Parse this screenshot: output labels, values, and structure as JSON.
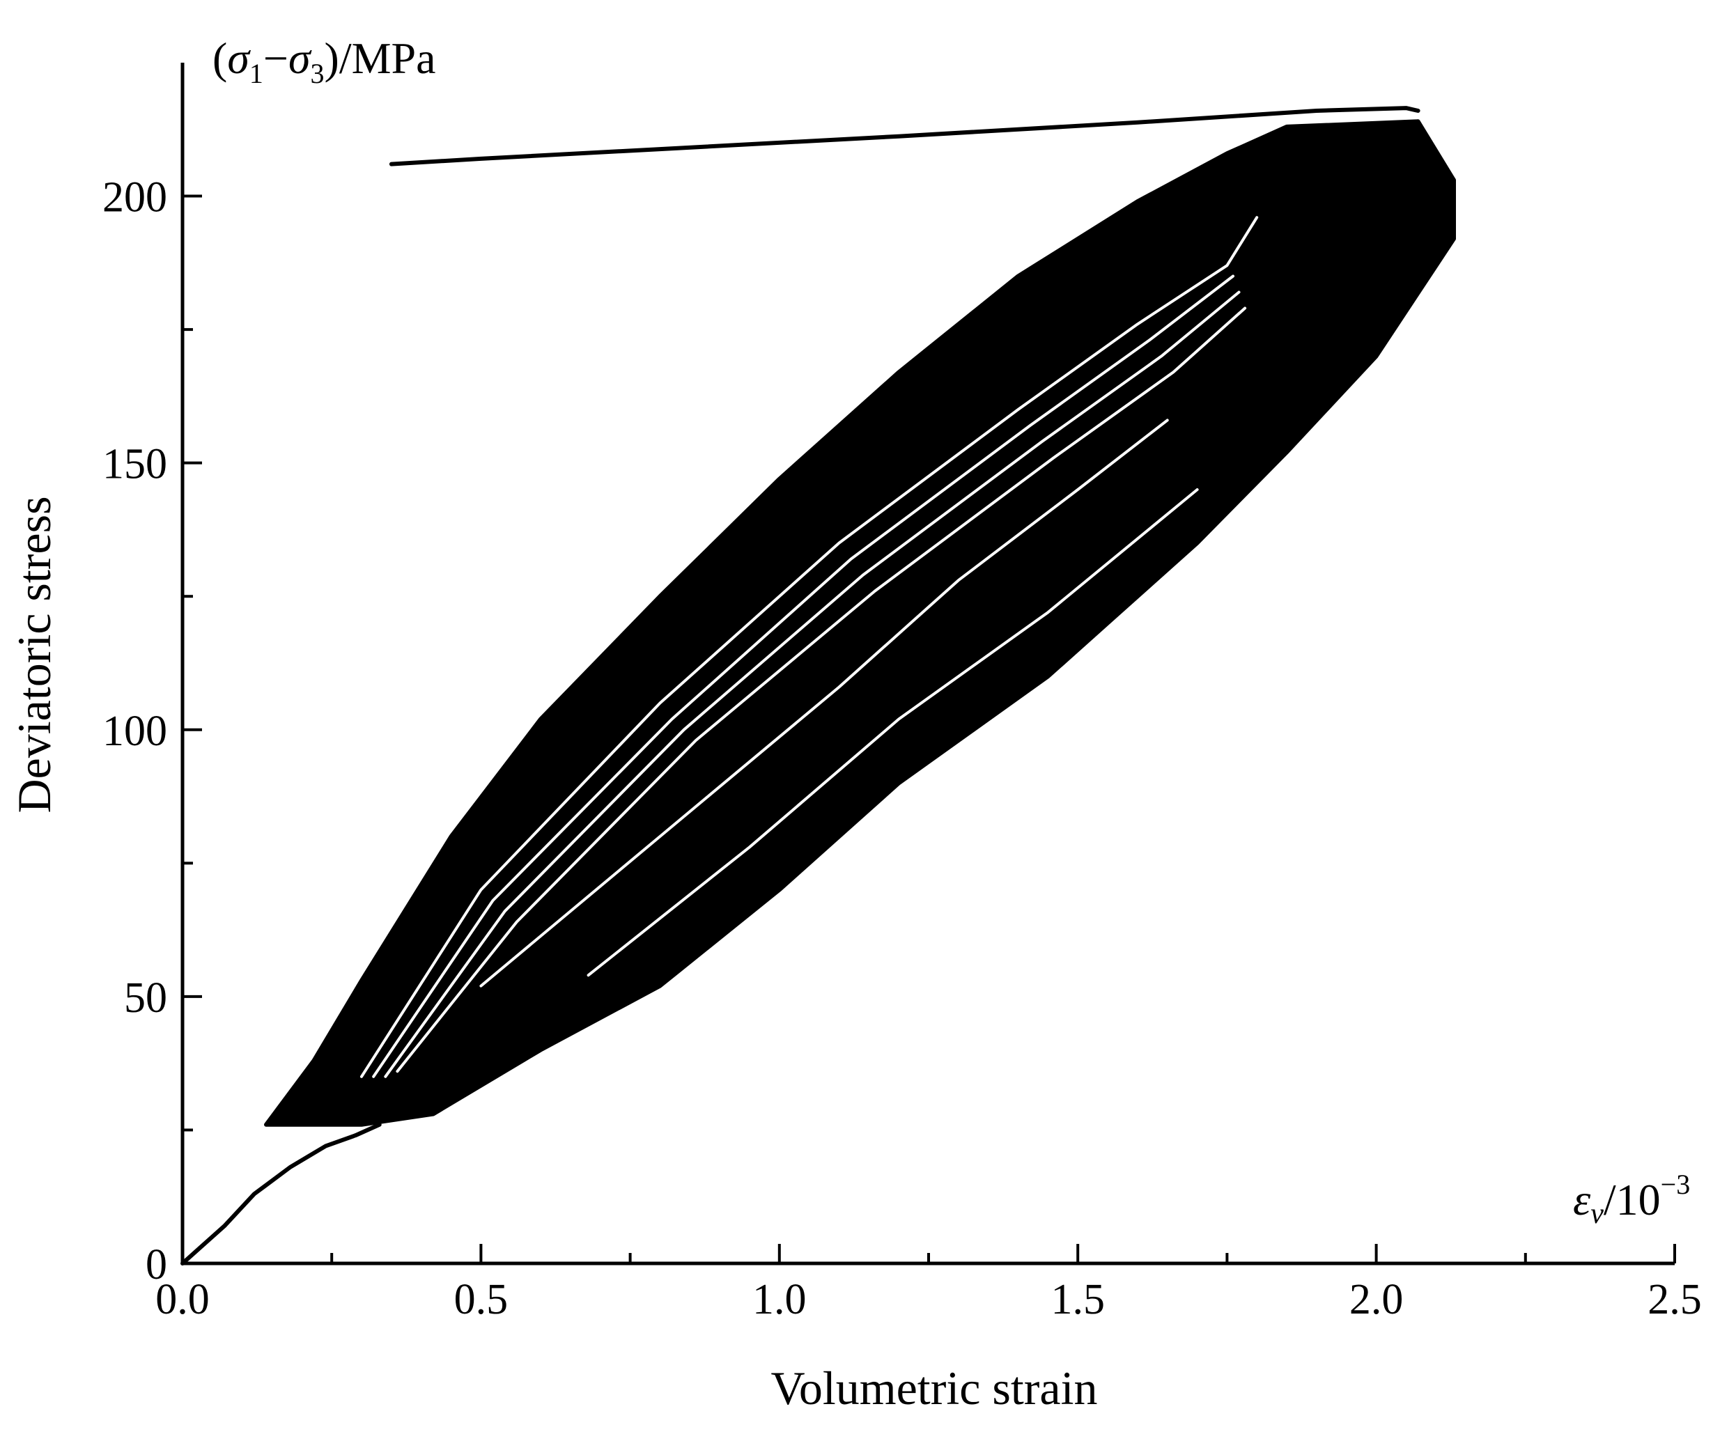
{
  "chart_data": {
    "type": "line",
    "title": "",
    "xlabel": "Volumetric strain",
    "ylabel": "Deviatoric stress",
    "x_unit_symbol": "ε",
    "x_unit_sub": "v",
    "x_unit_rest": "/10",
    "x_unit_exp": "−3",
    "y_unit_open": "(",
    "y_unit_sigma1": "σ",
    "y_unit_sub1": "1",
    "y_unit_minus": "−",
    "y_unit_sigma3": "σ",
    "y_unit_sub3": "3",
    "y_unit_close": ")/MPa",
    "xlim": [
      0,
      2.5
    ],
    "ylim": [
      0,
      225
    ],
    "x_ticks": [
      0.0,
      0.5,
      1.0,
      1.5,
      2.0,
      2.5
    ],
    "x_tick_labels": [
      "0.0",
      "0.5",
      "1.0",
      "1.5",
      "2.0",
      "2.5"
    ],
    "x_minor_ticks": [
      0.25,
      0.75,
      1.25,
      1.75,
      2.25
    ],
    "y_ticks": [
      0,
      50,
      100,
      150,
      200
    ],
    "y_tick_labels": [
      "0",
      "50",
      "100",
      "150",
      "200"
    ],
    "y_minor_ticks": [
      25,
      75,
      125,
      175
    ],
    "grid": false,
    "legend": "none",
    "line_color": "#000000",
    "initial_loading": {
      "x": [
        0.0,
        0.03,
        0.07,
        0.12,
        0.18,
        0.24,
        0.29,
        0.33
      ],
      "y": [
        0,
        3,
        7,
        13,
        18,
        22,
        24,
        26
      ]
    },
    "hysteresis_band": {
      "outer_upper_x": [
        0.14,
        0.22,
        0.3,
        0.45,
        0.6,
        0.8,
        1.0,
        1.2,
        1.4,
        1.6,
        1.75,
        1.85
      ],
      "outer_upper_y": [
        26,
        38,
        53,
        80,
        102,
        125,
        147,
        167,
        185,
        199,
        208,
        213
      ],
      "outer_lower_x": [
        0.14,
        0.3,
        0.42,
        0.6,
        0.8,
        1.0,
        1.2,
        1.45,
        1.7,
        1.85,
        2.0,
        2.13
      ],
      "outer_lower_y": [
        26,
        26,
        28,
        40,
        52,
        70,
        90,
        110,
        135,
        152,
        170,
        192
      ]
    },
    "inner_loops": [
      {
        "x": [
          0.3,
          0.5,
          0.8,
          1.1,
          1.4,
          1.6,
          1.75,
          1.8
        ],
        "y": [
          35,
          70,
          105,
          135,
          160,
          176,
          187,
          196
        ]
      },
      {
        "x": [
          0.32,
          0.52,
          0.82,
          1.12,
          1.42,
          1.62,
          1.76
        ],
        "y": [
          35,
          68,
          102,
          132,
          157,
          173,
          185
        ]
      },
      {
        "x": [
          0.34,
          0.54,
          0.84,
          1.14,
          1.44,
          1.64,
          1.77
        ],
        "y": [
          35,
          66,
          100,
          129,
          154,
          170,
          182
        ]
      },
      {
        "x": [
          0.36,
          0.56,
          0.86,
          1.16,
          1.46,
          1.66,
          1.78
        ],
        "y": [
          36,
          64,
          98,
          126,
          151,
          167,
          179
        ]
      },
      {
        "x": [
          0.5,
          0.8,
          1.1,
          1.3,
          1.5,
          1.65
        ],
        "y": [
          52,
          80,
          108,
          128,
          145,
          158
        ]
      },
      {
        "x": [
          0.68,
          0.95,
          1.2,
          1.45,
          1.7
        ],
        "y": [
          54,
          78,
          102,
          122,
          145
        ]
      }
    ],
    "failure_curve": {
      "x": [
        2.07,
        2.05,
        1.9,
        1.6,
        1.2,
        0.8,
        0.5,
        0.35
      ],
      "y": [
        216,
        216.5,
        216,
        213.8,
        211.2,
        208.8,
        207,
        206
      ]
    }
  }
}
